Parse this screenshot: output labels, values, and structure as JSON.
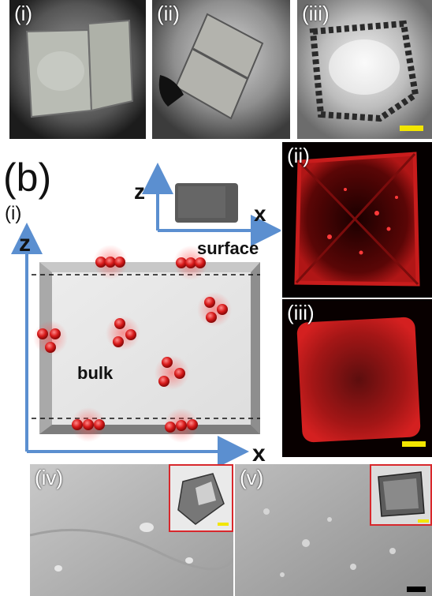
{
  "top_row": {
    "labels": [
      "(i)",
      "(ii)",
      "(iii)"
    ],
    "scalebar_color": "#f2e600"
  },
  "panel_b": {
    "label": "(b)",
    "sub_label": "(i)",
    "axis_z": "z",
    "axis_x": "x",
    "inset_axis_z": "z",
    "inset_axis_x": "x",
    "surface_label": "surface",
    "bulk_label": "bulk",
    "axis_color": "#5b8fd0",
    "particle_color": "#d81b1b"
  },
  "fluorescence": {
    "labels": [
      "(ii)",
      "(iii)"
    ],
    "scalebar_color": "#f2e600"
  },
  "sem": {
    "labels": [
      "(iv)",
      "(v)"
    ],
    "inset_border_color": "#d8282c",
    "scalebar_color": "#f2e600",
    "bottom_scalebar_color": "#000000"
  }
}
